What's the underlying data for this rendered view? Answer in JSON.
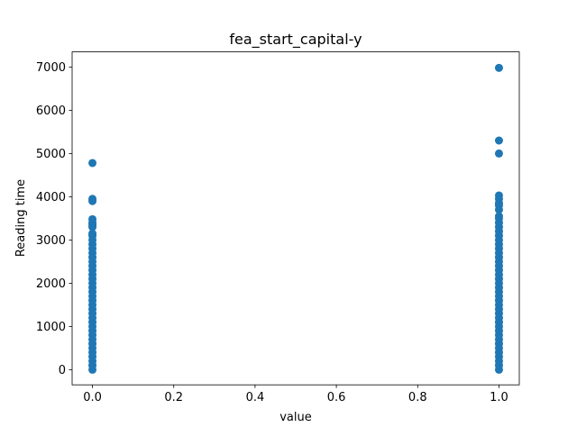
{
  "chart_data": {
    "type": "scatter",
    "title": "fea_start_capital-y",
    "x_label": "value",
    "y_label": "Reading time",
    "x": [
      0,
      0,
      0,
      0,
      0,
      0,
      0,
      0,
      0,
      0,
      0,
      0,
      0,
      0,
      0,
      0,
      0,
      0,
      0,
      0,
      0,
      0,
      0,
      0,
      0,
      0,
      0,
      0,
      0,
      0,
      0,
      0,
      0,
      0,
      0,
      0,
      0,
      0,
      0,
      0,
      1,
      1,
      1,
      1,
      1,
      1,
      1,
      1,
      1,
      1,
      1,
      1,
      1,
      1,
      1,
      1,
      1,
      1,
      1,
      1,
      1,
      1,
      1,
      1,
      1,
      1,
      1,
      1,
      1,
      1,
      1,
      1,
      1,
      1,
      1,
      1,
      1,
      1,
      1,
      1,
      1,
      1,
      1,
      1,
      1
    ],
    "values": [
      0,
      100,
      200,
      300,
      400,
      500,
      600,
      700,
      800,
      900,
      1000,
      1100,
      1200,
      1300,
      1400,
      1500,
      1600,
      1700,
      1800,
      1900,
      2000,
      2100,
      2200,
      2300,
      2400,
      2500,
      2600,
      2700,
      2800,
      2900,
      3000,
      3100,
      3150,
      3300,
      3350,
      3400,
      3480,
      3900,
      3950,
      4780,
      0,
      100,
      200,
      300,
      400,
      500,
      600,
      700,
      800,
      900,
      1000,
      1100,
      1200,
      1300,
      1400,
      1500,
      1600,
      1700,
      1800,
      1900,
      2000,
      2100,
      2200,
      2300,
      2400,
      2500,
      2600,
      2700,
      2800,
      2900,
      3000,
      3100,
      3200,
      3300,
      3400,
      3500,
      3550,
      3700,
      3800,
      3850,
      3950,
      4030,
      5000,
      5300,
      6980
    ],
    "color": "#1f77b4",
    "xlim": [
      -0.05,
      1.05
    ],
    "xticks": [
      {
        "value": 0,
        "label": "0.0"
      },
      {
        "value": 0.2,
        "label": "0.2"
      },
      {
        "value": 0.4,
        "label": "0.4"
      },
      {
        "value": 0.6,
        "label": "0.6"
      },
      {
        "value": 0.8,
        "label": "0.8"
      },
      {
        "value": 1,
        "label": "1.0"
      }
    ],
    "ylim": [
      -350,
      7350
    ],
    "yticks": [
      0,
      1000,
      2000,
      3000,
      4000,
      5000,
      6000,
      7000
    ],
    "grid": false
  }
}
